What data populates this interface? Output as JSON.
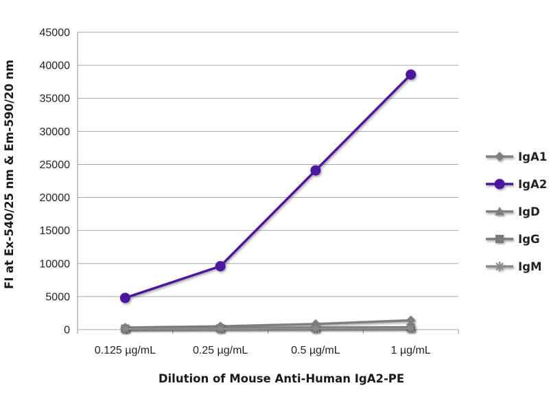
{
  "chart_data": {
    "type": "line",
    "title": "",
    "xlabel": "Dilution of Mouse Anti-Human IgA2-PE",
    "ylabel": "FI at Ex-540/25 nm & Em-590/20 nm",
    "categories": [
      "0.125 µg/mL",
      "0.25 µg/mL",
      "0.5 µg/mL",
      "1 µg/mL"
    ],
    "ylim": [
      0,
      45000
    ],
    "yticks": [
      0,
      5000,
      10000,
      15000,
      20000,
      25000,
      30000,
      35000,
      40000,
      45000
    ],
    "grid": "horizontal",
    "legend_position": "right",
    "series": [
      {
        "name": "IgA1",
        "values": [
          300,
          500,
          850,
          1400
        ],
        "color": "#7f7f7f",
        "marker": "diamond"
      },
      {
        "name": "IgA2",
        "values": [
          4800,
          9600,
          24100,
          38600
        ],
        "color": "#4b14a0",
        "marker": "circle"
      },
      {
        "name": "IgD",
        "values": [
          200,
          250,
          300,
          350
        ],
        "color": "#808080",
        "marker": "triangle"
      },
      {
        "name": "IgG",
        "values": [
          150,
          200,
          250,
          300
        ],
        "color": "#7a7a7a",
        "marker": "square"
      },
      {
        "name": "IgM",
        "values": [
          100,
          120,
          150,
          180
        ],
        "color": "#8a8a8a",
        "marker": "star"
      }
    ]
  }
}
